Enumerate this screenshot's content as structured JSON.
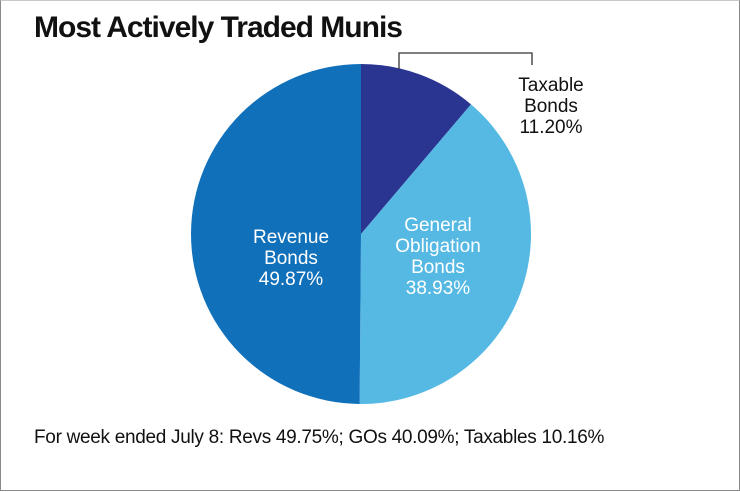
{
  "chart_data": {
    "type": "pie",
    "title": "Most Actively Traded Munis",
    "slices": [
      {
        "label_lines": [
          "Taxable",
          "Bonds"
        ],
        "value": 11.2,
        "value_label": "11.20%",
        "color": "#2a3591"
      },
      {
        "label_lines": [
          "General",
          "Obligation",
          "Bonds"
        ],
        "value": 38.93,
        "value_label": "38.93%",
        "color": "#56b9e4"
      },
      {
        "label_lines": [
          "Revenue",
          "Bonds"
        ],
        "value": 49.87,
        "value_label": "49.87%",
        "color": "#1170ba"
      }
    ],
    "footnote": "For week ended July 8: Revs 49.75%; GOs 40.09%; Taxables 10.16%"
  }
}
